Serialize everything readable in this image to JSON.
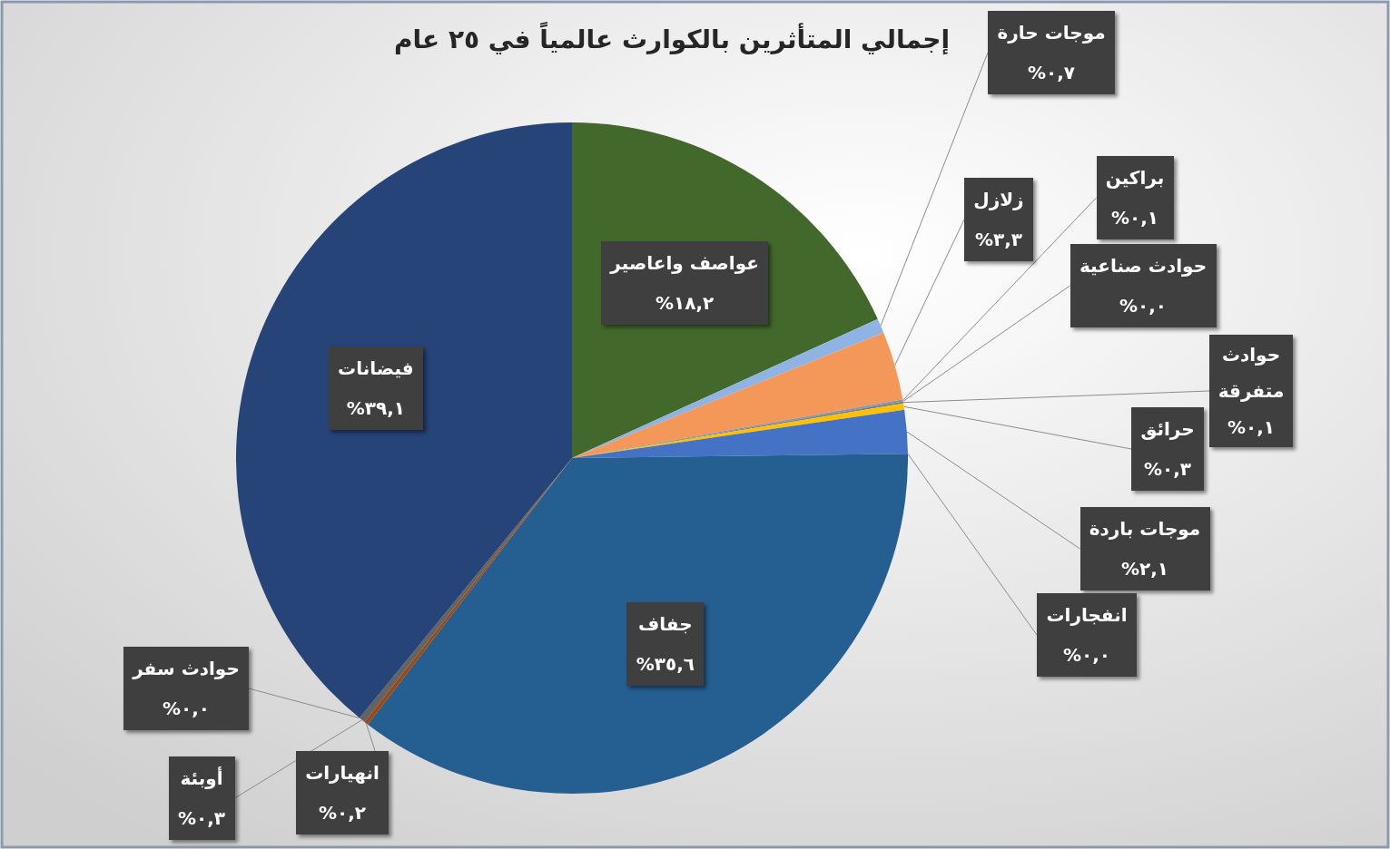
{
  "chart_data": {
    "type": "pie",
    "title": "إجمالي المتأثرين بالكوارث عالمياً في ٢٥ عام",
    "categories": [
      "عواصف واعاصير",
      "موجات حارة",
      "زلازل",
      "براكين",
      "حوادث صناعية",
      "حوادث متفرقة",
      "حرائق",
      "موجات باردة",
      "انفجارات",
      "جفاف",
      "انهيارات",
      "أوبئة",
      "حوادث سفر",
      "فيضانات"
    ],
    "values": [
      18.2,
      0.7,
      3.3,
      0.1,
      0.0,
      0.1,
      0.3,
      2.1,
      0.0,
      35.6,
      0.2,
      0.3,
      0.0,
      39.1
    ],
    "colors": [
      "#43682b",
      "#8fb4e3",
      "#f4985a",
      "#8497b0",
      "#a5a5a5",
      "#7f7f7f",
      "#ffc000",
      "#4472c4",
      "#5b9bd5",
      "#255e91",
      "#9e480e",
      "#636363",
      "#997300",
      "#264478"
    ],
    "value_labels": [
      "١٨,٢%",
      "٠,٧%",
      "٣,٣%",
      "٠,١%",
      "٠,٠%",
      "٠,١%",
      "٠,٣%",
      "٢,١%",
      "٠,٠%",
      "٣٥,٦%",
      "٠,٢%",
      "٠,٣%",
      "٠,٠%",
      "٣٩,١%"
    ]
  }
}
